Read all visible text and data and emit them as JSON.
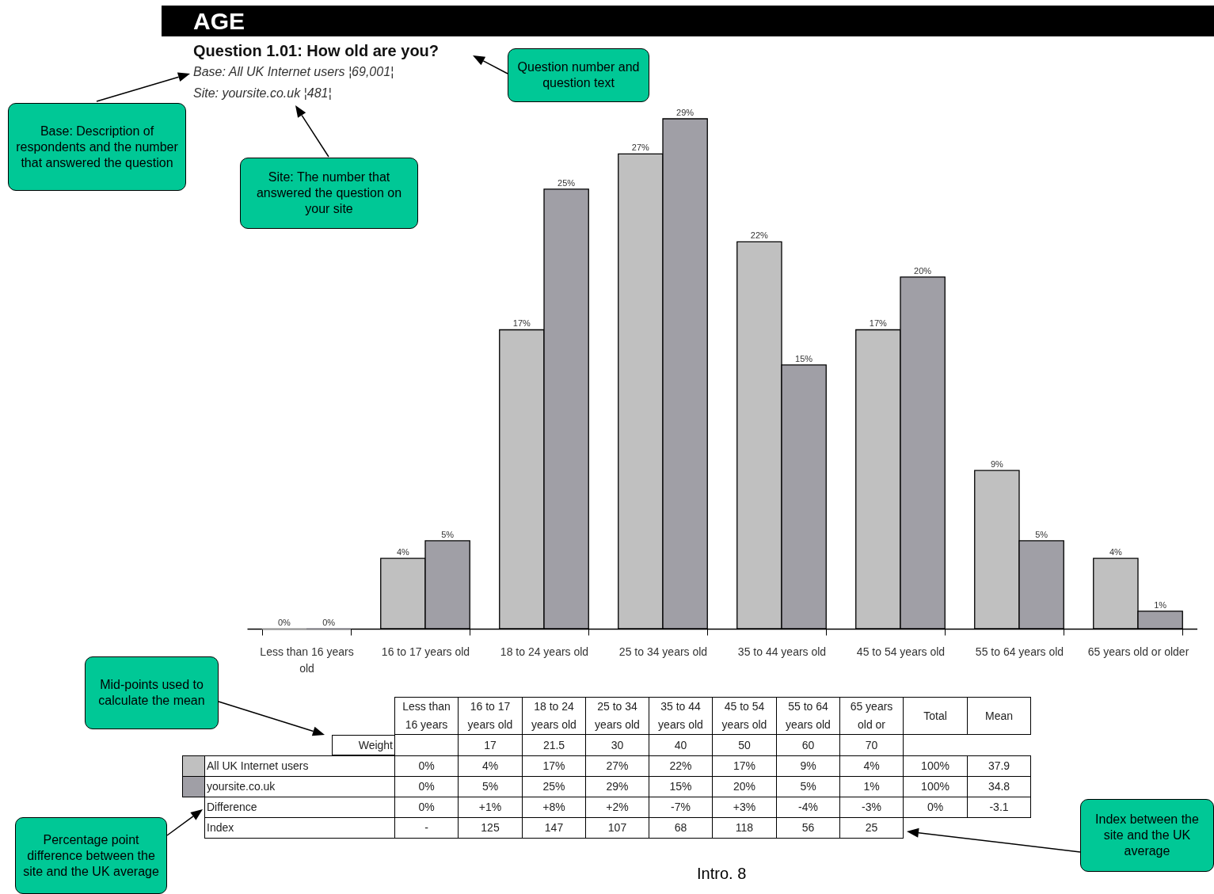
{
  "chart_data": {
    "type": "bar",
    "title": "AGE",
    "subtitle": "Question 1.01: How old are you?",
    "categories": [
      "Less than 16 years old",
      "16 to 17 years old",
      "18 to 24 years old",
      "25 to 34 years old",
      "35 to 44 years old",
      "45 to 54 years old",
      "55 to 64 years old",
      "65 years old or older"
    ],
    "series": [
      {
        "name": "All UK Internet users",
        "color": "#c0c0c0",
        "values": [
          0,
          4,
          17,
          27,
          22,
          17,
          9,
          4
        ],
        "value_labels": [
          "0%",
          "4%",
          "17%",
          "27%",
          "22%",
          "17%",
          "9%",
          "4%"
        ]
      },
      {
        "name": "yoursite.co.uk",
        "color": "#a09fa6",
        "values": [
          0,
          5,
          25,
          29,
          15,
          20,
          5,
          1
        ],
        "value_labels": [
          "0%",
          "5%",
          "25%",
          "29%",
          "15%",
          "20%",
          "5%",
          "1%"
        ]
      }
    ],
    "legend": "bottom left",
    "annotations": [
      "Base: All UK Internet users ¦69,001¦",
      "Site: yoursite.co.uk ¦481¦",
      "Question number and question text",
      "Base: Description of respondents and the number that answered the question",
      "Site: The number that answered the question on your site",
      "Mid-points used to calculate the mean",
      "Percentage point difference between the site and the UK average",
      "Index between the site and the UK average",
      "Intro. 8",
      "Less than 16 years",
      "16 to 17 years old",
      "18 to 24 years old",
      "25 to 34 years old",
      "35 to 44 years old",
      "45 to 54 years old",
      "55 to 64 years old",
      "65 years old or",
      "Total",
      "Mean",
      "Weight",
      "17",
      "21.5",
      "30",
      "40",
      "50",
      "60",
      "70",
      "100%",
      "37.9",
      "100%",
      "34.8",
      "Difference",
      "0%",
      "+1%",
      "+8%",
      "+2%",
      "-7%",
      "+3%",
      "-4%",
      "-3%",
      "0%",
      "-3.1",
      "Index",
      "-",
      "125",
      "147",
      "107",
      "68",
      "118",
      "56",
      "25"
    ]
  }
}
